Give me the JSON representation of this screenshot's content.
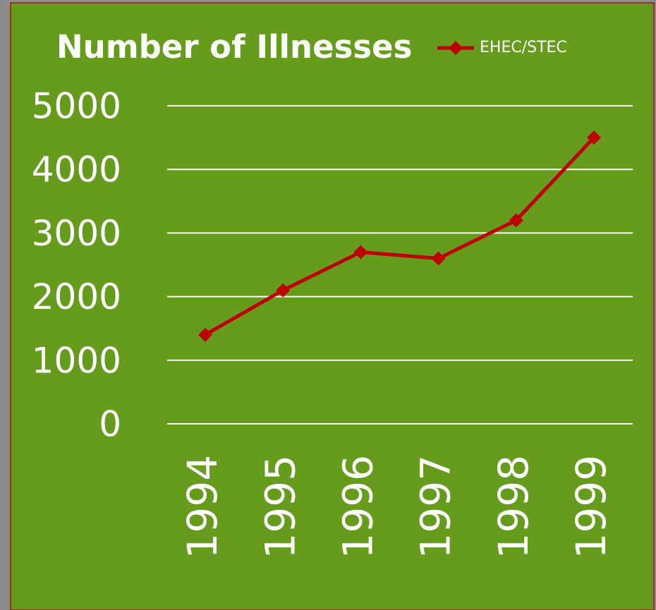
{
  "chart_data": {
    "type": "line",
    "title": "Number of Illnesses",
    "categories": [
      "1994",
      "1995",
      "1996",
      "1997",
      "1998",
      "1999"
    ],
    "series": [
      {
        "name": "EHEC/STEC",
        "color": "#c00000",
        "values": [
          1400,
          2100,
          2700,
          2600,
          3200,
          4500
        ]
      }
    ],
    "ylim": [
      0,
      5000
    ],
    "yticks": [
      0,
      1000,
      2000,
      3000,
      4000,
      5000
    ],
    "grid": true,
    "legend": "top"
  }
}
